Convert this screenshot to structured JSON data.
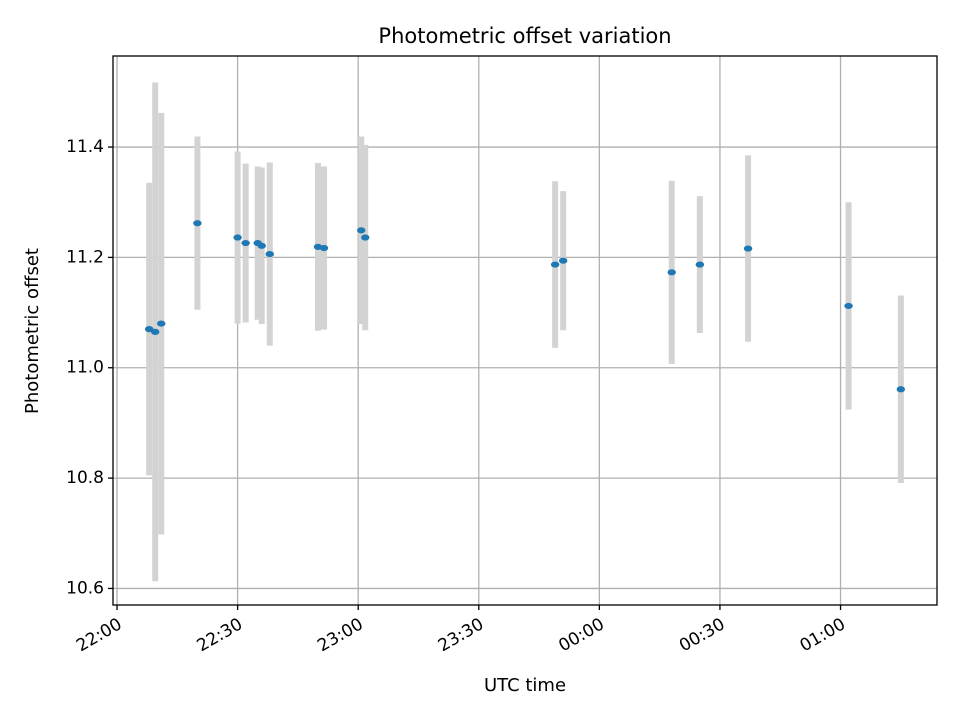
{
  "chart_data": {
    "type": "scatter",
    "title": "Photometric offset variation",
    "xlabel": "UTC time",
    "ylabel": "Photometric offset",
    "x_ticks": [
      "22:00",
      "22:30",
      "23:00",
      "23:30",
      "00:00",
      "00:30",
      "01:00"
    ],
    "y_ticks": [
      "10.6",
      "10.8",
      "11.0",
      "11.2",
      "11.4"
    ],
    "xlim_minutes": [
      -1,
      204
    ],
    "ylim": [
      10.57,
      11.565
    ],
    "grid": true,
    "colors": {
      "point": "#1f77b4",
      "errorbar": "#d3d3d3",
      "grid": "#b0b0b0"
    },
    "series": [
      {
        "points": [
          {
            "x": "22:08",
            "y": 11.07,
            "err": 0.265
          },
          {
            "x": "22:09:30",
            "y": 11.065,
            "err": 0.452
          },
          {
            "x": "22:11",
            "y": 11.08,
            "err": 0.382
          },
          {
            "x": "22:20",
            "y": 11.262,
            "err": 0.157
          },
          {
            "x": "22:30",
            "y": 11.236,
            "err": 0.156
          },
          {
            "x": "22:32",
            "y": 11.226,
            "err": 0.144
          },
          {
            "x": "22:35",
            "y": 11.226,
            "err": 0.139
          },
          {
            "x": "22:36",
            "y": 11.221,
            "err": 0.142
          },
          {
            "x": "22:38",
            "y": 11.206,
            "err": 0.166
          },
          {
            "x": "22:50",
            "y": 11.219,
            "err": 0.152
          },
          {
            "x": "22:51:30",
            "y": 11.217,
            "err": 0.148
          },
          {
            "x": "23:00:45",
            "y": 11.249,
            "err": 0.17
          },
          {
            "x": "23:01:45",
            "y": 11.236,
            "err": 0.168
          },
          {
            "x": "23:49",
            "y": 11.187,
            "err": 0.151
          },
          {
            "x": "23:51",
            "y": 11.194,
            "err": 0.126
          },
          {
            "x": "00:18",
            "y": 11.173,
            "err": 0.166
          },
          {
            "x": "00:25",
            "y": 11.187,
            "err": 0.124
          },
          {
            "x": "00:37",
            "y": 11.216,
            "err": 0.169
          },
          {
            "x": "01:02",
            "y": 11.112,
            "err": 0.188
          },
          {
            "x": "01:15",
            "y": 10.961,
            "err": 0.17
          }
        ]
      }
    ]
  }
}
